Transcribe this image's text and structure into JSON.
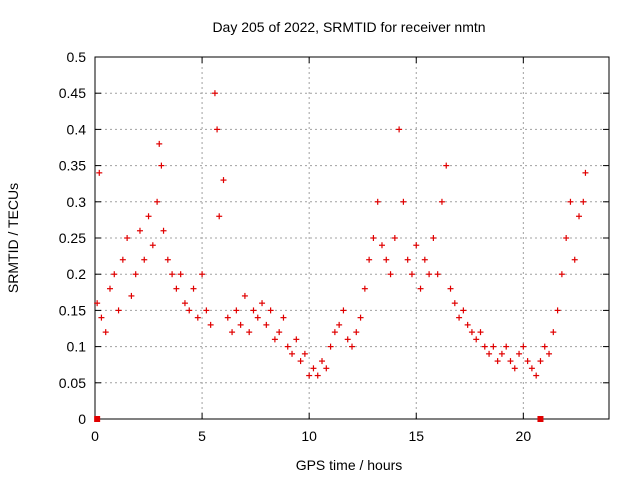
{
  "chart_data": {
    "type": "scatter",
    "title": "Day 205 of 2022, SRMTID for receiver nmtn",
    "xlabel": "GPS time / hours",
    "ylabel": "SRMTID / TECUs",
    "xlim": [
      0,
      24
    ],
    "ylim": [
      0,
      0.5
    ],
    "x_ticks": [
      "0",
      "5",
      "10",
      "15",
      "20"
    ],
    "x_tick_values": [
      0,
      5,
      10,
      15,
      20
    ],
    "y_ticks": [
      "0",
      "0.05",
      "0.1",
      "0.15",
      "0.2",
      "0.25",
      "0.3",
      "0.35",
      "0.4",
      "0.45",
      "0.5"
    ],
    "y_tick_values": [
      0,
      0.05,
      0.1,
      0.15,
      0.2,
      0.25,
      0.3,
      0.35,
      0.4,
      0.45,
      0.5
    ],
    "grid": true,
    "marker": "plus",
    "color": "#e00000",
    "series": [
      {
        "name": "SRMTID",
        "x": [
          0.1,
          0.2,
          0.3,
          0.5,
          0.7,
          0.9,
          1.1,
          1.3,
          1.5,
          1.7,
          1.9,
          2.1,
          2.3,
          2.5,
          2.7,
          2.9,
          3.0,
          3.1,
          3.2,
          3.4,
          3.6,
          3.8,
          4.0,
          4.2,
          4.4,
          4.6,
          4.8,
          5.0,
          5.2,
          5.4,
          5.6,
          5.7,
          5.8,
          6.0,
          6.2,
          6.4,
          6.6,
          6.8,
          7.0,
          7.2,
          7.4,
          7.6,
          7.8,
          8.0,
          8.2,
          8.4,
          8.6,
          8.8,
          9.0,
          9.2,
          9.4,
          9.6,
          9.8,
          10.0,
          10.2,
          10.4,
          10.6,
          10.8,
          11.0,
          11.2,
          11.4,
          11.6,
          11.8,
          12.0,
          12.2,
          12.4,
          12.6,
          12.8,
          13.0,
          13.2,
          13.4,
          13.6,
          13.8,
          14.0,
          14.2,
          14.4,
          14.6,
          14.8,
          15.0,
          15.2,
          15.4,
          15.6,
          15.8,
          16.0,
          16.2,
          16.4,
          16.6,
          16.8,
          17.0,
          17.2,
          17.4,
          17.6,
          17.8,
          18.0,
          18.2,
          18.4,
          18.6,
          18.8,
          19.0,
          19.2,
          19.4,
          19.6,
          19.8,
          20.0,
          20.2,
          20.4,
          20.6,
          20.8,
          21.0,
          21.2,
          21.4,
          21.6,
          21.8,
          22.0,
          22.2,
          22.4,
          22.6,
          22.8,
          22.9
        ],
        "y": [
          0.16,
          0.34,
          0.14,
          0.12,
          0.18,
          0.2,
          0.15,
          0.22,
          0.25,
          0.17,
          0.2,
          0.26,
          0.22,
          0.28,
          0.24,
          0.3,
          0.38,
          0.35,
          0.26,
          0.22,
          0.2,
          0.18,
          0.2,
          0.16,
          0.15,
          0.18,
          0.14,
          0.2,
          0.15,
          0.13,
          0.45,
          0.4,
          0.28,
          0.33,
          0.14,
          0.12,
          0.15,
          0.13,
          0.17,
          0.12,
          0.15,
          0.14,
          0.16,
          0.13,
          0.15,
          0.11,
          0.12,
          0.14,
          0.1,
          0.09,
          0.11,
          0.08,
          0.09,
          0.06,
          0.07,
          0.06,
          0.08,
          0.07,
          0.1,
          0.12,
          0.13,
          0.15,
          0.11,
          0.1,
          0.12,
          0.14,
          0.18,
          0.22,
          0.25,
          0.3,
          0.24,
          0.22,
          0.2,
          0.25,
          0.4,
          0.3,
          0.22,
          0.2,
          0.24,
          0.18,
          0.22,
          0.2,
          0.25,
          0.2,
          0.3,
          0.35,
          0.18,
          0.16,
          0.14,
          0.15,
          0.13,
          0.12,
          0.11,
          0.12,
          0.1,
          0.09,
          0.1,
          0.08,
          0.09,
          0.1,
          0.08,
          0.07,
          0.09,
          0.1,
          0.08,
          0.07,
          0.06,
          0.08,
          0.1,
          0.09,
          0.12,
          0.15,
          0.2,
          0.25,
          0.3,
          0.22,
          0.28,
          0.3,
          0.34
        ]
      }
    ],
    "zero_markers_x": [
      0.1,
      20.8
    ]
  }
}
